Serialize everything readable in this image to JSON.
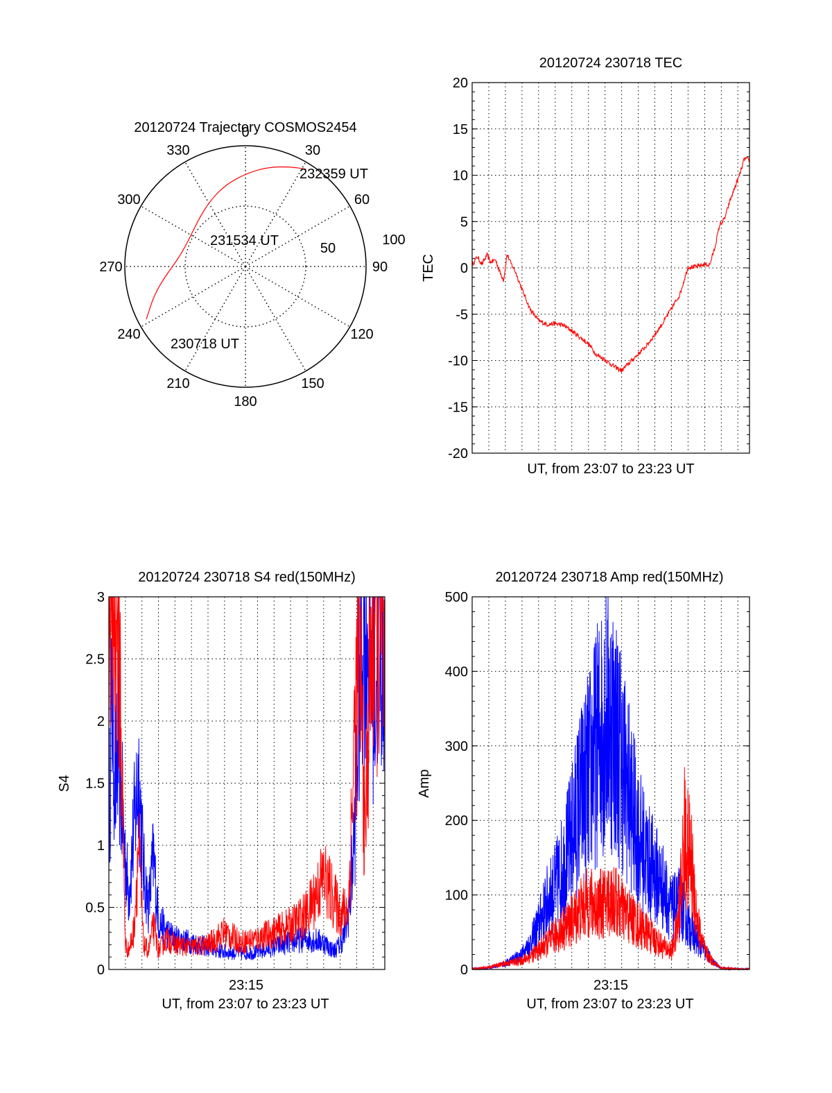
{
  "colors": {
    "red": "#ff0000",
    "blue": "#0000ff",
    "grid": "#000000"
  },
  "chart_data": [
    {
      "type": "polar",
      "title": "20120724 Trajectory COSMOS2454",
      "azimuth_labels": [
        "0",
        "30",
        "60",
        "90",
        "120",
        "150",
        "180",
        "210",
        "240",
        "270",
        "300",
        "330"
      ],
      "radius_labels": [
        "50",
        "100"
      ],
      "elevation_rings": [
        50,
        100
      ],
      "trajectory": {
        "color": "#ff0000",
        "start_label": "230718 UT",
        "mid_label": "231534 UT",
        "end_label": "232359 UT",
        "points": [
          {
            "az": 242,
            "r": 93
          },
          {
            "az": 252,
            "r": 80
          },
          {
            "az": 262,
            "r": 68
          },
          {
            "az": 275,
            "r": 57
          },
          {
            "az": 292,
            "r": 52
          },
          {
            "az": 315,
            "r": 55
          },
          {
            "az": 332,
            "r": 62
          },
          {
            "az": 347,
            "r": 70
          },
          {
            "az": 2,
            "r": 78
          },
          {
            "az": 14,
            "r": 85
          },
          {
            "az": 25,
            "r": 91
          },
          {
            "az": 32,
            "r": 95
          }
        ]
      }
    },
    {
      "type": "line",
      "title": "20120724 230718 TEC",
      "xlabel": "UT, from 23:07 to 23:23 UT",
      "ylabel": "TEC",
      "ylim": [
        -20,
        20
      ],
      "yticks": [
        "-20",
        "-15",
        "-10",
        "-5",
        "0",
        "5",
        "10",
        "15",
        "20"
      ],
      "xlim_minutes": [
        0,
        16.7
      ],
      "series": [
        {
          "color": "#ff0000",
          "x": [
            0,
            0.3,
            0.6,
            0.9,
            1.1,
            1.4,
            1.7,
            1.9,
            2.1,
            2.3,
            2.6,
            3.0,
            3.5,
            4.0,
            4.5,
            5.0,
            5.5,
            6.0,
            6.5,
            7.0,
            7.5,
            8.0,
            8.5,
            9.0,
            9.5,
            10.0,
            10.5,
            11.0,
            11.5,
            12.0,
            12.5,
            13.0,
            13.5,
            14.0,
            14.3,
            14.6,
            14.9,
            15.2,
            15.5,
            15.8,
            16.1,
            16.4,
            16.7
          ],
          "y": [
            0.3,
            1.2,
            0.4,
            1.4,
            0.6,
            0.9,
            -0.6,
            -1.3,
            1.5,
            0.6,
            -0.4,
            -2.3,
            -4.5,
            -5.7,
            -6.1,
            -6.0,
            -6.2,
            -6.8,
            -7.5,
            -8.2,
            -9.4,
            -9.9,
            -10.6,
            -11.1,
            -10.2,
            -9.3,
            -8.4,
            -7.2,
            -5.9,
            -4.4,
            -2.9,
            0.1,
            0.1,
            0.4,
            0.3,
            2.1,
            4.6,
            5.3,
            7.1,
            8.6,
            10.0,
            11.8,
            11.6
          ]
        }
      ]
    },
    {
      "type": "line",
      "title": "20120724 230718 S4 red(150MHz)",
      "xlabel": "UT, from 23:07 to 23:23 UT",
      "ylabel": "S4",
      "ylim": [
        0,
        3
      ],
      "yticks": [
        "0",
        "0.5",
        "1",
        "1.5",
        "2",
        "2.5",
        "3"
      ],
      "xtick_label": "23:15",
      "xlim_minutes": [
        0,
        16.7
      ],
      "series": [
        {
          "color": "#0000ff",
          "x": [
            0,
            0.2,
            0.4,
            0.6,
            0.8,
            1.0,
            1.2,
            1.5,
            1.8,
            2.1,
            2.4,
            2.7,
            3.0,
            3.5,
            4.0,
            5.0,
            6.0,
            7.0,
            8.0,
            9.0,
            10.0,
            11.0,
            12.0,
            13.0,
            13.6,
            14.0,
            14.3,
            14.6,
            14.9,
            15.2,
            15.5,
            15.8,
            16.1,
            16.4,
            16.7
          ],
          "y": [
            1.2,
            2.2,
            1.5,
            1.8,
            1.3,
            0.9,
            0.6,
            1.1,
            1.6,
            0.8,
            0.5,
            0.9,
            0.4,
            0.3,
            0.25,
            0.22,
            0.18,
            0.14,
            0.13,
            0.14,
            0.18,
            0.22,
            0.25,
            0.22,
            0.15,
            0.2,
            0.3,
            0.55,
            1.2,
            2.4,
            2.9,
            2.6,
            2.3,
            2.8,
            2.5
          ]
        },
        {
          "color": "#ff0000",
          "x": [
            0,
            0.2,
            0.4,
            0.6,
            0.8,
            1.0,
            1.2,
            1.5,
            1.8,
            2.1,
            2.4,
            2.7,
            3.0,
            3.5,
            4.0,
            5.0,
            6.0,
            7.0,
            8.0,
            9.0,
            10.0,
            11.0,
            12.0,
            12.5,
            13.0,
            13.5,
            14.0,
            14.5,
            14.9,
            15.2,
            15.5,
            15.8,
            16.1,
            16.4,
            16.7
          ],
          "y": [
            3.0,
            2.8,
            3.0,
            2.9,
            1.5,
            0.2,
            0.15,
            0.3,
            1.0,
            0.2,
            0.15,
            0.35,
            0.15,
            0.25,
            0.2,
            0.18,
            0.2,
            0.3,
            0.22,
            0.25,
            0.3,
            0.35,
            0.45,
            0.6,
            0.75,
            0.6,
            0.45,
            0.5,
            2.0,
            2.6,
            1.0,
            2.4,
            2.9,
            2.7,
            2.3
          ]
        }
      ]
    },
    {
      "type": "line",
      "title": "20120724 230718 Amp red(150MHz)",
      "xlabel": "UT, from 23:07 to 23:23 UT",
      "ylabel": "Amp",
      "ylim": [
        0,
        500
      ],
      "yticks": [
        "0",
        "100",
        "200",
        "300",
        "400",
        "500"
      ],
      "xtick_label": "23:15",
      "xlim_minutes": [
        0,
        16.7
      ],
      "series": [
        {
          "color": "#0000ff",
          "x": [
            0,
            1.0,
            2.0,
            3.0,
            3.5,
            4.0,
            4.5,
            5.0,
            5.5,
            6.0,
            6.5,
            7.0,
            7.5,
            8.0,
            8.5,
            9.0,
            9.5,
            10.0,
            10.5,
            11.0,
            11.5,
            12.0,
            12.5,
            13.0,
            13.5,
            14.0,
            14.5,
            15.0,
            16.0,
            16.7
          ],
          "y": [
            0,
            2,
            8,
            20,
            35,
            60,
            90,
            110,
            140,
            180,
            230,
            260,
            300,
            340,
            330,
            280,
            230,
            180,
            150,
            130,
            110,
            80,
            90,
            60,
            40,
            25,
            10,
            2,
            0,
            0
          ]
        },
        {
          "color": "#ff0000",
          "x": [
            0,
            1.0,
            2.0,
            3.0,
            3.5,
            4.0,
            4.5,
            5.0,
            5.5,
            6.0,
            6.5,
            7.0,
            7.5,
            8.0,
            8.5,
            9.0,
            9.5,
            10.0,
            10.5,
            11.0,
            11.5,
            12.0,
            12.4,
            12.8,
            13.2,
            13.6,
            14.0,
            14.5,
            15.0,
            16.0,
            16.7
          ],
          "y": [
            0,
            3,
            8,
            12,
            18,
            25,
            35,
            45,
            55,
            65,
            80,
            90,
            85,
            90,
            95,
            80,
            70,
            60,
            50,
            40,
            30,
            25,
            60,
            180,
            140,
            60,
            25,
            10,
            2,
            0,
            0
          ]
        }
      ]
    }
  ]
}
